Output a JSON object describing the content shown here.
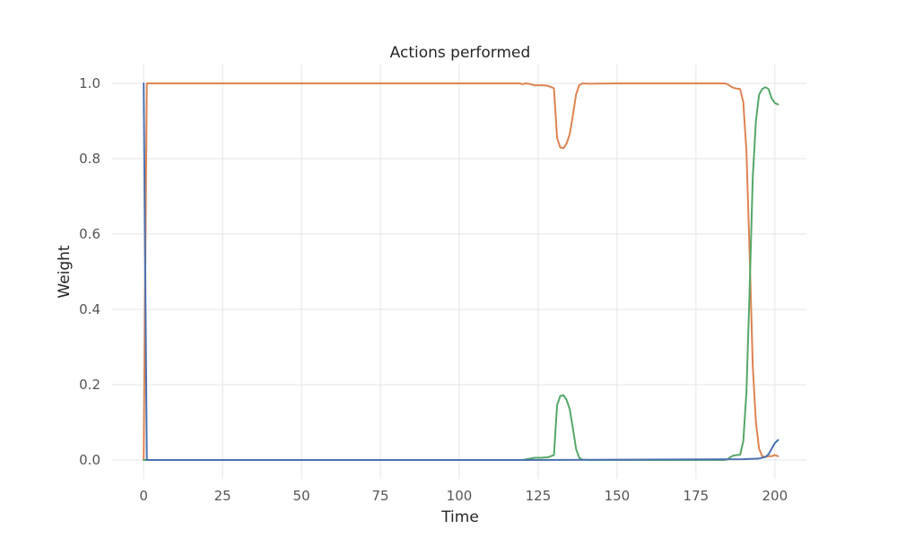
{
  "chart_data": {
    "type": "line",
    "title": "Actions performed",
    "xlabel": "Time",
    "ylabel": "Weight",
    "xlim": [
      -10,
      210
    ],
    "ylim": [
      -0.05,
      1.05
    ],
    "x_ticks": [
      0,
      25,
      50,
      75,
      100,
      125,
      150,
      175,
      200
    ],
    "x_tick_labels": [
      "0",
      "25",
      "50",
      "75",
      "100",
      "125",
      "150",
      "175",
      "200"
    ],
    "y_ticks": [
      0.0,
      0.2,
      0.4,
      0.6,
      0.8,
      1.0
    ],
    "y_tick_labels": [
      "0.0",
      "0.2",
      "0.4",
      "0.6",
      "0.8",
      "1.0"
    ],
    "grid": true,
    "legend": "none",
    "series": [
      {
        "color": "#dd8452",
        "points": [
          [
            0,
            0.0
          ],
          [
            1,
            1.0
          ],
          [
            119,
            1.0
          ],
          [
            120,
            0.998
          ],
          [
            121,
            1.0
          ],
          [
            122,
            0.999
          ],
          [
            124,
            0.995
          ],
          [
            126,
            0.995
          ],
          [
            128,
            0.994
          ],
          [
            130,
            0.987
          ],
          [
            131,
            0.855
          ],
          [
            132,
            0.83
          ],
          [
            133,
            0.828
          ],
          [
            134,
            0.84
          ],
          [
            135,
            0.865
          ],
          [
            136,
            0.915
          ],
          [
            137,
            0.97
          ],
          [
            138,
            0.995
          ],
          [
            139,
            1.0
          ],
          [
            141,
            0.999
          ],
          [
            150,
            1.0
          ],
          [
            184,
            1.0
          ],
          [
            185,
            0.998
          ],
          [
            186,
            0.992
          ],
          [
            187,
            0.988
          ],
          [
            188,
            0.986
          ],
          [
            189,
            0.985
          ],
          [
            190,
            0.95
          ],
          [
            191,
            0.82
          ],
          [
            192,
            0.55
          ],
          [
            193,
            0.25
          ],
          [
            194,
            0.1
          ],
          [
            195,
            0.03
          ],
          [
            196,
            0.01
          ],
          [
            197,
            0.008
          ],
          [
            198,
            0.01
          ],
          [
            199,
            0.01
          ],
          [
            200,
            0.013
          ],
          [
            201,
            0.01
          ]
        ]
      },
      {
        "color": "#55a868",
        "points": [
          [
            0,
            0.0
          ],
          [
            120,
            0.0
          ],
          [
            122,
            0.003
          ],
          [
            124,
            0.006
          ],
          [
            126,
            0.006
          ],
          [
            128,
            0.007
          ],
          [
            130,
            0.013
          ],
          [
            131,
            0.145
          ],
          [
            132,
            0.17
          ],
          [
            133,
            0.172
          ],
          [
            134,
            0.16
          ],
          [
            135,
            0.135
          ],
          [
            136,
            0.085
          ],
          [
            137,
            0.03
          ],
          [
            138,
            0.006
          ],
          [
            139,
            0.001
          ],
          [
            141,
            0.0
          ],
          [
            184,
            0.0
          ],
          [
            185,
            0.002
          ],
          [
            186,
            0.008
          ],
          [
            187,
            0.012
          ],
          [
            188,
            0.013
          ],
          [
            189,
            0.014
          ],
          [
            190,
            0.05
          ],
          [
            191,
            0.18
          ],
          [
            192,
            0.45
          ],
          [
            193,
            0.75
          ],
          [
            194,
            0.9
          ],
          [
            195,
            0.97
          ],
          [
            196,
            0.985
          ],
          [
            197,
            0.99
          ],
          [
            198,
            0.985
          ],
          [
            199,
            0.96
          ],
          [
            200,
            0.948
          ],
          [
            201,
            0.944
          ]
        ]
      },
      {
        "color": "#4c72b0",
        "points": [
          [
            0,
            1.0
          ],
          [
            1,
            0.0
          ],
          [
            120,
            0.0
          ],
          [
            190,
            0.002
          ],
          [
            195,
            0.004
          ],
          [
            197,
            0.008
          ],
          [
            198,
            0.015
          ],
          [
            199,
            0.03
          ],
          [
            200,
            0.045
          ],
          [
            201,
            0.053
          ]
        ]
      }
    ]
  }
}
